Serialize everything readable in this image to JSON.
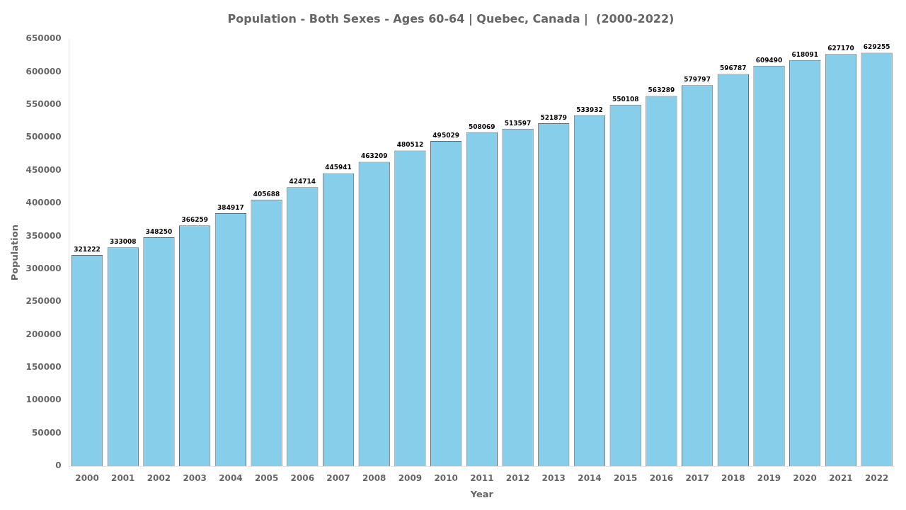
{
  "chart_data": {
    "type": "bar",
    "title": "Population - Both Sexes - Ages 60-64 | Quebec, Canada |  (2000-2022)",
    "xlabel": "Year",
    "ylabel": "Population",
    "categories": [
      "2000",
      "2001",
      "2002",
      "2003",
      "2004",
      "2005",
      "2006",
      "2007",
      "2008",
      "2009",
      "2010",
      "2011",
      "2012",
      "2013",
      "2014",
      "2015",
      "2016",
      "2017",
      "2018",
      "2019",
      "2020",
      "2021",
      "2022"
    ],
    "values": [
      321222,
      333008,
      348250,
      366259,
      384917,
      405688,
      424714,
      445941,
      463209,
      480512,
      495029,
      508069,
      513597,
      521879,
      533932,
      550108,
      563289,
      579797,
      596787,
      609490,
      618091,
      627170,
      629255
    ],
    "color": "#87CEEB",
    "ylim": [
      0,
      650000
    ],
    "yticks": [
      0,
      50000,
      100000,
      150000,
      200000,
      250000,
      300000,
      350000,
      400000,
      450000,
      500000,
      550000,
      600000,
      650000
    ],
    "grid": false,
    "data_labels": true
  }
}
